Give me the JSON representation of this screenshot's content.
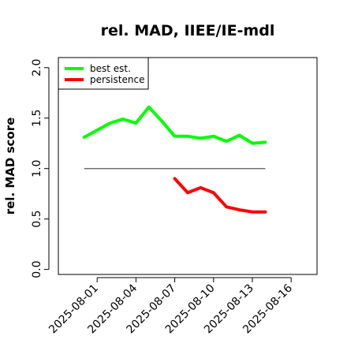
{
  "chart_data": {
    "type": "line",
    "title": "rel. MAD, IIEE/IE-mdl",
    "xlabel": "",
    "ylabel": "rel. MAD score",
    "x_ticks": [
      "2025-08-01",
      "2025-08-04",
      "2025-08-07",
      "2025-08-10",
      "2025-08-13",
      "2025-08-16"
    ],
    "y_ticks": [
      "0.0",
      "0.5",
      "1.0",
      "1.5",
      "2.0"
    ],
    "xlim": [
      "2025-07-29",
      "2025-08-18"
    ],
    "ylim": [
      -0.05,
      2.1
    ],
    "grid": false,
    "legend_position": "top-left",
    "reference_line": 1.0,
    "series": [
      {
        "name": "best est.",
        "color": "#00ff00",
        "x": [
          "2025-07-31",
          "2025-08-01",
          "2025-08-02",
          "2025-08-03",
          "2025-08-04",
          "2025-08-05",
          "2025-08-06",
          "2025-08-07",
          "2025-08-08",
          "2025-08-09",
          "2025-08-10",
          "2025-08-11",
          "2025-08-12",
          "2025-08-13",
          "2025-08-14"
        ],
        "y": [
          1.31,
          1.38,
          1.45,
          1.49,
          1.45,
          1.61,
          1.47,
          1.32,
          1.32,
          1.3,
          1.32,
          1.27,
          1.33,
          1.25,
          1.26
        ]
      },
      {
        "name": "persistence",
        "color": "#ff0000",
        "x": [
          "2025-08-07",
          "2025-08-08",
          "2025-08-09",
          "2025-08-10",
          "2025-08-11",
          "2025-08-12",
          "2025-08-13",
          "2025-08-14"
        ],
        "y": [
          0.9,
          0.76,
          0.81,
          0.76,
          0.62,
          0.59,
          0.57,
          0.57
        ]
      }
    ]
  }
}
